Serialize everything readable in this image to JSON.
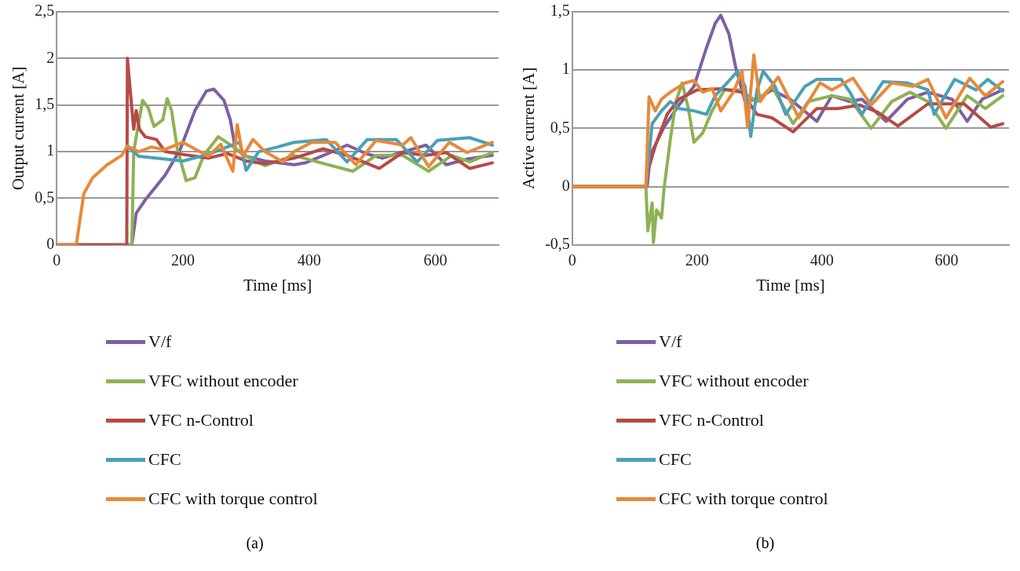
{
  "chart_data": [
    {
      "type": "line",
      "xlabel": "Time [ms]",
      "ylabel": "Output current [A]",
      "xlim": [
        0,
        700
      ],
      "xticks": [
        0,
        200,
        400,
        600
      ],
      "ylim": [
        0,
        2.5
      ],
      "yticks": [
        0,
        {
          "value": 0.5,
          "label": "0,5"
        },
        1,
        {
          "value": 1.5,
          "label": "1,5"
        },
        2,
        {
          "value": 2.5,
          "label": "2,5"
        }
      ],
      "grid": "y",
      "legend": "bottom",
      "annotations": [
        "(a)"
      ],
      "series": [
        {
          "name": "V/f",
          "color": "#7d60a0",
          "x": [
            0,
            119,
            126,
            140,
            172,
            196,
            219,
            237,
            249,
            265,
            275,
            283,
            300,
            330,
            376,
            394,
            430,
            460,
            490,
            516,
            550,
            585,
            617,
            650,
            690
          ],
          "values": [
            0,
            0,
            0.34,
            0.48,
            0.75,
            1.03,
            1.44,
            1.65,
            1.67,
            1.55,
            1.34,
            1.03,
            0.95,
            0.9,
            0.86,
            0.88,
            0.98,
            1.07,
            0.98,
            0.93,
            1.0,
            1.07,
            0.86,
            0.92,
            0.96
          ]
        },
        {
          "name": "VFC without encoder",
          "color": "#8db255",
          "x": [
            0,
            119,
            122,
            136,
            145,
            154,
            168,
            175,
            182,
            191,
            205,
            219,
            233,
            256,
            280,
            300,
            330,
            376,
            413,
            469,
            506,
            548,
            589,
            626,
            654,
            690
          ],
          "values": [
            0,
            0,
            1.0,
            1.55,
            1.47,
            1.27,
            1.34,
            1.57,
            1.44,
            1.03,
            0.69,
            0.72,
            0.96,
            1.16,
            1.05,
            0.95,
            0.85,
            0.96,
            0.89,
            0.79,
            0.96,
            0.96,
            0.79,
            0.96,
            0.89,
            0.99
          ]
        },
        {
          "name": "VFC n-Control",
          "color": "#b64a47",
          "x": [
            0,
            111,
            112,
            122,
            126,
            131,
            140,
            158,
            172,
            200,
            240,
            270,
            300,
            330,
            376,
            422,
            460,
            511,
            548,
            585,
            617,
            654,
            690
          ],
          "values": [
            0,
            0,
            2.0,
            1.24,
            1.44,
            1.24,
            1.16,
            1.13,
            1.0,
            0.97,
            0.93,
            0.98,
            0.9,
            0.87,
            0.93,
            1.03,
            0.96,
            0.82,
            0.99,
            0.96,
            0.99,
            0.82,
            0.88
          ]
        },
        {
          "name": "CFC",
          "color": "#4aa0b8",
          "x": [
            112,
            130,
            160,
            200,
            240,
            270,
            290,
            300,
            320,
            350,
            376,
            427,
            460,
            492,
            538,
            571,
            603,
            654,
            690
          ],
          "values": [
            1.06,
            0.95,
            0.93,
            0.9,
            0.97,
            1.05,
            1.1,
            0.8,
            1.0,
            1.05,
            1.1,
            1.13,
            0.89,
            1.13,
            1.13,
            0.89,
            1.12,
            1.15,
            1.07
          ]
        },
        {
          "name": "CFC with torque control",
          "color": "#e8893a",
          "x": [
            0,
            31,
            43,
            57,
            80,
            103,
            112,
            130,
            150,
            170,
            200,
            240,
            260,
            279,
            286,
            295,
            311,
            330,
            358,
            376,
            404,
            441,
            474,
            506,
            548,
            561,
            589,
            622,
            650,
            690
          ],
          "values": [
            0,
            0,
            0.55,
            0.72,
            0.86,
            0.96,
            1.06,
            1.0,
            1.05,
            1.02,
            1.1,
            0.95,
            1.08,
            0.79,
            1.29,
            0.95,
            1.13,
            1.0,
            0.89,
            1.0,
            1.1,
            1.1,
            0.86,
            1.12,
            1.07,
            1.15,
            0.84,
            1.1,
            0.99,
            1.1
          ]
        }
      ]
    },
    {
      "type": "line",
      "xlabel": "Time [ms]",
      "ylabel": "Active current [A]",
      "xlim": [
        0,
        700
      ],
      "xticks": [
        0,
        200,
        400,
        600
      ],
      "ylim": [
        -0.5,
        1.5
      ],
      "yticks": [
        {
          "value": -0.5,
          "label": "-0,5"
        },
        0,
        {
          "value": 0.5,
          "label": "0,5"
        },
        1,
        {
          "value": 1.5,
          "label": "1,5"
        }
      ],
      "grid": "y",
      "legend": "bottom",
      "annotations": [
        "(b)"
      ],
      "series": [
        {
          "name": "V/f",
          "color": "#7d60a0",
          "x": [
            0,
            120,
            125,
            147,
            171,
            195,
            215,
            229,
            238,
            251,
            262,
            277,
            296,
            320,
            349,
            392,
            416,
            445,
            464,
            503,
            537,
            570,
            609,
            633,
            657,
            690
          ],
          "values": [
            0,
            0,
            0.27,
            0.51,
            0.7,
            0.86,
            1.19,
            1.4,
            1.47,
            1.31,
            1.02,
            0.73,
            0.75,
            0.83,
            0.75,
            0.56,
            0.78,
            0.73,
            0.75,
            0.56,
            0.75,
            0.81,
            0.75,
            0.56,
            0.75,
            0.83
          ]
        },
        {
          "name": "VFC without encoder",
          "color": "#8db255",
          "x": [
            0,
            118,
            121,
            128,
            130,
            135,
            143,
            147,
            157,
            166,
            176,
            186,
            195,
            209,
            224,
            244,
            268,
            296,
            320,
            354,
            378,
            416,
            445,
            479,
            512,
            541,
            570,
            599,
            633,
            662,
            690
          ],
          "values": [
            0,
            0,
            -0.38,
            -0.14,
            -0.48,
            -0.2,
            -0.27,
            -0.02,
            0.4,
            0.73,
            0.89,
            0.67,
            0.38,
            0.46,
            0.65,
            0.83,
            0.83,
            0.73,
            0.86,
            0.54,
            0.73,
            0.78,
            0.75,
            0.5,
            0.73,
            0.81,
            0.73,
            0.5,
            0.78,
            0.67,
            0.78
          ]
        },
        {
          "name": "VFC n-Control",
          "color": "#b64a47",
          "x": [
            0,
            118,
            121,
            133,
            152,
            171,
            200,
            238,
            272,
            296,
            320,
            354,
            392,
            426,
            460,
            489,
            522,
            570,
            628,
            671,
            690
          ],
          "values": [
            0,
            0,
            0.13,
            0.35,
            0.62,
            0.75,
            0.83,
            0.84,
            0.81,
            0.62,
            0.59,
            0.47,
            0.67,
            0.67,
            0.7,
            0.64,
            0.52,
            0.71,
            0.71,
            0.51,
            0.54
          ]
        },
        {
          "name": "CFC",
          "color": "#4aa0b8",
          "x": [
            0,
            118,
            128,
            143,
            157,
            171,
            195,
            215,
            229,
            248,
            265,
            277,
            286,
            296,
            306,
            325,
            342,
            373,
            392,
            431,
            445,
            464,
            498,
            537,
            570,
            580,
            613,
            647,
            666,
            690
          ],
          "values": [
            0,
            0,
            0.54,
            0.65,
            0.73,
            0.67,
            0.65,
            0.62,
            0.78,
            0.89,
            0.99,
            0.86,
            0.43,
            0.83,
            0.99,
            0.86,
            0.62,
            0.86,
            0.92,
            0.92,
            0.81,
            0.62,
            0.9,
            0.89,
            0.83,
            0.62,
            0.92,
            0.83,
            0.92,
            0.82
          ]
        },
        {
          "name": "CFC with torque control",
          "color": "#e8893a",
          "x": [
            0,
            118,
            123,
            133,
            143,
            157,
            181,
            195,
            209,
            224,
            238,
            258,
            272,
            281,
            291,
            301,
            330,
            363,
            397,
            416,
            450,
            479,
            512,
            546,
            570,
            599,
            637,
            662,
            690
          ],
          "values": [
            0,
            0,
            0.77,
            0.65,
            0.75,
            0.81,
            0.89,
            0.91,
            0.81,
            0.84,
            0.65,
            0.81,
            0.99,
            0.51,
            1.13,
            0.73,
            0.94,
            0.59,
            0.89,
            0.83,
            0.93,
            0.7,
            0.89,
            0.86,
            0.92,
            0.59,
            0.93,
            0.78,
            0.9
          ]
        }
      ]
    }
  ]
}
